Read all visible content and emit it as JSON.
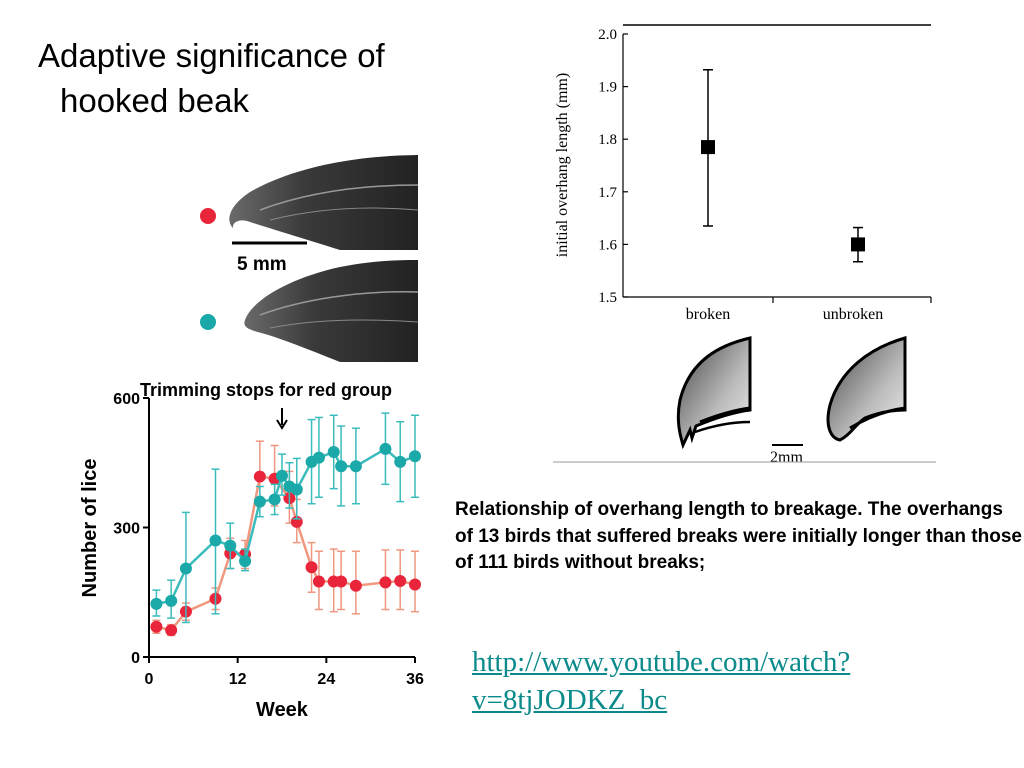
{
  "slide": {
    "title_line1": "Adaptive significance of",
    "title_line2": "hooked beak",
    "caption": "Relationship of overhang length to breakage. The overhangs of 13 birds that suffered breaks were initially longer than those of 111 birds without breaks;",
    "link": "http://www.youtube.com/watch?v=8tjJODKZ_bc"
  },
  "beak_photos": {
    "scale_label": "5 mm",
    "colors": {
      "red_marker": "#e8253a",
      "teal_marker": "#1aa8a8"
    }
  },
  "beak_drawings": {
    "scale_label": "2mm"
  },
  "chart_data": [
    {
      "type": "scatter",
      "title": "",
      "xlabel": "",
      "ylabel": "initial overhang length (mm)",
      "categories": [
        "broken",
        "unbroken"
      ],
      "values": [
        1.785,
        1.6
      ],
      "error_high": [
        1.932,
        1.632
      ],
      "error_low": [
        1.635,
        1.567
      ],
      "ylim": [
        1.5,
        2.0
      ],
      "yticks": [
        "1.5",
        "1.6",
        "1.7",
        "1.8",
        "1.9",
        "2.0"
      ],
      "marker": "square",
      "color": "#000000",
      "grid": false
    },
    {
      "type": "line",
      "title": "",
      "annotation": "Trimming stops for red group",
      "annotation_week": 18,
      "xlabel": "Week",
      "ylabel": "Number of lice",
      "xlim": [
        0,
        36
      ],
      "ylim": [
        0,
        600
      ],
      "xticks": [
        "0",
        "12",
        "24",
        "36"
      ],
      "yticks": [
        "0",
        "300",
        "600"
      ],
      "grid": false,
      "series": [
        {
          "color": "#e8253a",
          "line_color": "#f0977f",
          "points": [
            {
              "x": 1,
              "y": 70,
              "lo": 55,
              "hi": 85
            },
            {
              "x": 3,
              "y": 62,
              "lo": 50,
              "hi": 75
            },
            {
              "x": 5,
              "y": 105,
              "lo": 85,
              "hi": 125
            },
            {
              "x": 9,
              "y": 135,
              "lo": 110,
              "hi": 160
            },
            {
              "x": 11,
              "y": 240,
              "lo": 205,
              "hi": 275
            },
            {
              "x": 13,
              "y": 238,
              "lo": 205,
              "hi": 270
            },
            {
              "x": 15,
              "y": 418,
              "lo": 360,
              "hi": 500
            },
            {
              "x": 17,
              "y": 413,
              "lo": 350,
              "hi": 490
            },
            {
              "x": 19,
              "y": 368,
              "lo": 310,
              "hi": 430
            },
            {
              "x": 20,
              "y": 313,
              "lo": 265,
              "hi": 365
            },
            {
              "x": 22,
              "y": 208,
              "lo": 150,
              "hi": 265
            },
            {
              "x": 23,
              "y": 175,
              "lo": 110,
              "hi": 245
            },
            {
              "x": 25,
              "y": 175,
              "lo": 105,
              "hi": 250
            },
            {
              "x": 26,
              "y": 175,
              "lo": 110,
              "hi": 245
            },
            {
              "x": 28,
              "y": 165,
              "lo": 100,
              "hi": 245
            },
            {
              "x": 32,
              "y": 173,
              "lo": 110,
              "hi": 248
            },
            {
              "x": 34,
              "y": 176,
              "lo": 110,
              "hi": 248
            },
            {
              "x": 36,
              "y": 168,
              "lo": 105,
              "hi": 245
            }
          ]
        },
        {
          "color": "#1aa8a8",
          "line_color": "#3bbcbc",
          "points": [
            {
              "x": 1,
              "y": 123,
              "lo": 95,
              "hi": 155
            },
            {
              "x": 3,
              "y": 130,
              "lo": 90,
              "hi": 178
            },
            {
              "x": 5,
              "y": 205,
              "lo": 80,
              "hi": 335
            },
            {
              "x": 9,
              "y": 270,
              "lo": 100,
              "hi": 435
            },
            {
              "x": 11,
              "y": 258,
              "lo": 205,
              "hi": 310
            },
            {
              "x": 13,
              "y": 222,
              "lo": 200,
              "hi": 250
            },
            {
              "x": 15,
              "y": 360,
              "lo": 325,
              "hi": 395
            },
            {
              "x": 17,
              "y": 365,
              "lo": 330,
              "hi": 400
            },
            {
              "x": 18,
              "y": 420,
              "lo": 375,
              "hi": 470
            },
            {
              "x": 19,
              "y": 395,
              "lo": 345,
              "hi": 450
            },
            {
              "x": 20,
              "y": 388,
              "lo": 320,
              "hi": 460
            },
            {
              "x": 22,
              "y": 452,
              "lo": 355,
              "hi": 550
            },
            {
              "x": 23,
              "y": 462,
              "lo": 370,
              "hi": 555
            },
            {
              "x": 25,
              "y": 475,
              "lo": 390,
              "hi": 560
            },
            {
              "x": 26,
              "y": 442,
              "lo": 350,
              "hi": 535
            },
            {
              "x": 28,
              "y": 442,
              "lo": 355,
              "hi": 530
            },
            {
              "x": 32,
              "y": 482,
              "lo": 400,
              "hi": 565
            },
            {
              "x": 34,
              "y": 452,
              "lo": 360,
              "hi": 545
            },
            {
              "x": 36,
              "y": 465,
              "lo": 370,
              "hi": 560
            }
          ]
        }
      ]
    }
  ]
}
